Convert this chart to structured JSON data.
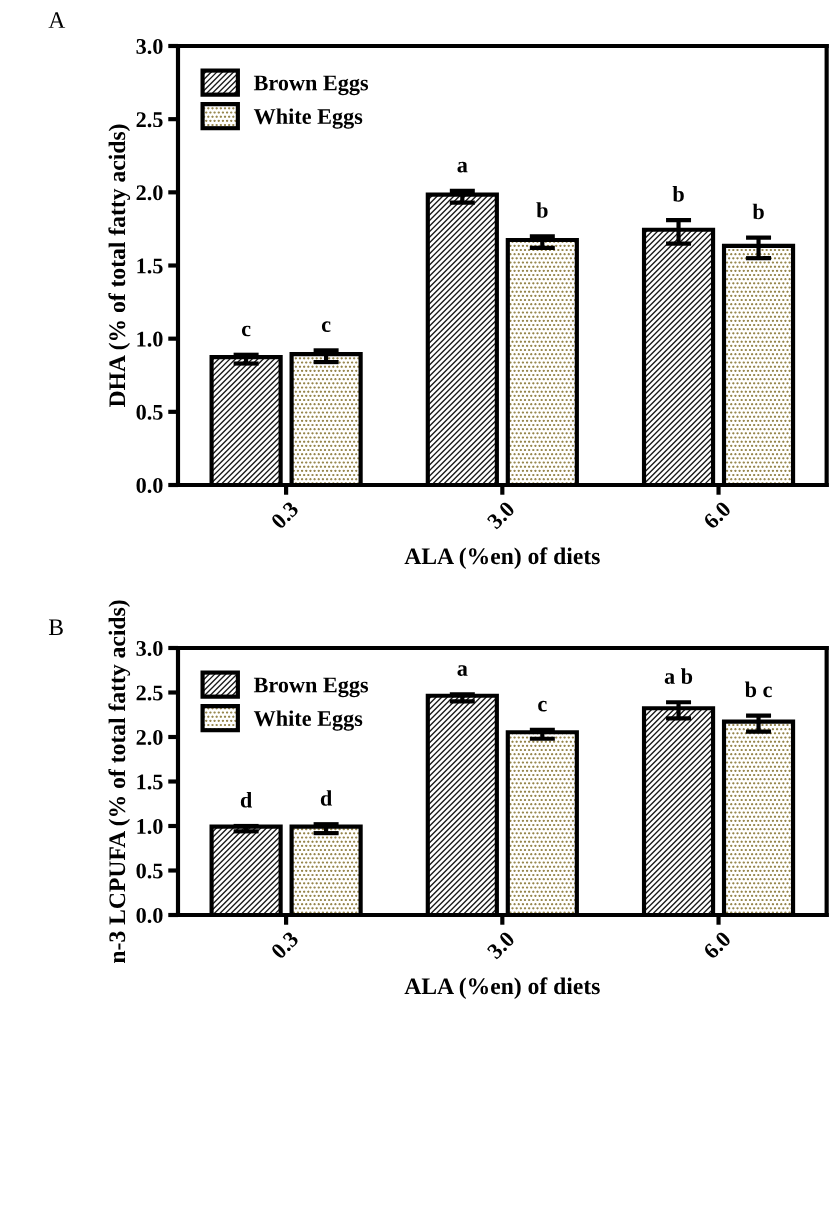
{
  "chart_data": [
    {
      "type": "bar",
      "title": "A",
      "xlabel": "ALA (%en) of diets",
      "ylabel": "DHA (% of total fatty acids)",
      "categories": [
        "0.3",
        "3.0",
        "6.0"
      ],
      "series": [
        {
          "name": "Brown Eggs",
          "color": "#1a1a1a",
          "values": [
            0.86,
            1.97,
            1.73
          ],
          "errors": [
            0.03,
            0.04,
            0.08
          ]
        },
        {
          "name": "White Eggs",
          "color": "#8c7a3b",
          "values": [
            0.88,
            1.66,
            1.62
          ],
          "errors": [
            0.04,
            0.04,
            0.07
          ]
        }
      ],
      "ylim": [
        0,
        3.0
      ],
      "yticks": [
        {
          "value": 0,
          "label": "0.0"
        },
        {
          "value": 0.5,
          "label": "0.5"
        },
        {
          "value": 1.0,
          "label": "1.0"
        },
        {
          "value": 1.5,
          "label": "1.5"
        },
        {
          "value": 2.0,
          "label": "2.0"
        },
        {
          "value": 2.5,
          "label": "2.5"
        },
        {
          "value": 3.0,
          "label": "3.0"
        }
      ],
      "legend": "top left",
      "annotations": [
        "c",
        "c",
        "a",
        "b",
        "b",
        "b"
      ]
    },
    {
      "type": "bar",
      "title": "B",
      "xlabel": "ALA (%en) of diets",
      "ylabel": "n-3 LCPUFA (% of total fatty acids)",
      "categories": [
        "0.3",
        "3.0",
        "6.0"
      ],
      "series": [
        {
          "name": "Brown Eggs",
          "color": "#1a1a1a",
          "values": [
            0.97,
            2.44,
            2.3
          ],
          "errors": [
            0.03,
            0.04,
            0.09
          ]
        },
        {
          "name": "White Eggs",
          "color": "#8c7a3b",
          "values": [
            0.97,
            2.03,
            2.15
          ],
          "errors": [
            0.05,
            0.05,
            0.09
          ]
        }
      ],
      "ylim": [
        0,
        3.0
      ],
      "yticks": [
        {
          "value": 0,
          "label": "0.0"
        },
        {
          "value": 0.5,
          "label": "0.5"
        },
        {
          "value": 1.0,
          "label": "1.0"
        },
        {
          "value": 1.5,
          "label": "1.5"
        },
        {
          "value": 2.0,
          "label": "2.0"
        },
        {
          "value": 2.5,
          "label": "2.5"
        },
        {
          "value": 3.0,
          "label": "3.0"
        }
      ],
      "legend": "top left",
      "annotations": [
        "d",
        "d",
        "a",
        "c",
        "a b",
        "b c"
      ]
    }
  ]
}
